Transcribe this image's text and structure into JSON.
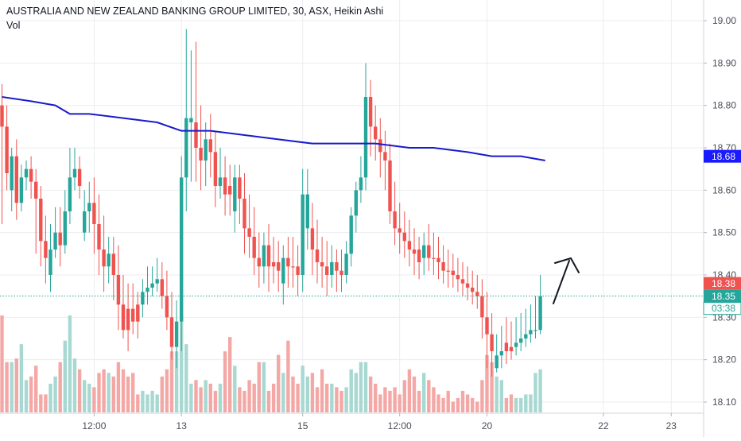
{
  "header": {
    "title": "AUSTRALIA AND NEW ZEALAND BANKING GROUP LIMITED, 30, ASX, Heikin Ashi",
    "vol_label": "Vol"
  },
  "chart_data": {
    "type": "candlestick",
    "title": "AUSTRALIA AND NEW ZEALAND BANKING GROUP LIMITED, 30, ASX, Heikin Ashi",
    "ylim": [
      18.07,
      19.04
    ],
    "y_ticks": [
      "19.00",
      "18.90",
      "18.80",
      "18.70",
      "18.60",
      "18.50",
      "18.40",
      "18.30",
      "18.20",
      "18.10"
    ],
    "x_ticks": [
      {
        "label": "12:00",
        "index": 19
      },
      {
        "label": "13",
        "index": 37
      },
      {
        "label": "15",
        "index": 62
      },
      {
        "label": "12:00",
        "index": 82
      },
      {
        "label": "20",
        "index": 100
      },
      {
        "label": "22",
        "index": 124
      },
      {
        "label": "23",
        "index": 138
      }
    ],
    "candle_dir": [
      -1,
      -1,
      1,
      -1,
      1,
      1,
      -1,
      -1,
      -1,
      -1,
      1,
      1,
      -1,
      1,
      1,
      1,
      -1,
      1,
      1,
      -1,
      -1,
      -1,
      1,
      -1,
      -1,
      -1,
      -1,
      -1,
      -1,
      1,
      1,
      1,
      1,
      -1,
      -1,
      -1,
      1,
      1,
      1,
      1,
      -1,
      -1,
      1,
      -1,
      -1,
      1,
      -1,
      -1,
      1,
      -1,
      -1,
      -1,
      -1,
      -1,
      1,
      -1,
      -1,
      -1,
      1,
      -1,
      -1,
      -1,
      1,
      1,
      -1,
      -1,
      -1,
      -1,
      1,
      -1,
      -1,
      1,
      1,
      1,
      1,
      1,
      -1,
      -1,
      -1,
      -1,
      -1,
      -1,
      -1,
      -1,
      -1,
      -1,
      -1,
      1,
      -1,
      -1,
      -1,
      -1,
      -1,
      -1,
      -1,
      -1,
      -1,
      -1,
      -1,
      -1,
      -1,
      -1,
      1,
      1,
      -1,
      -1,
      1,
      1,
      1,
      1,
      1,
      1,
      1,
      1
    ],
    "closes": [
      18.75,
      18.64,
      18.68,
      18.57,
      18.63,
      18.65,
      18.62,
      18.58,
      18.48,
      18.44,
      18.46,
      18.5,
      18.47,
      18.55,
      18.63,
      18.65,
      18.61,
      18.55,
      18.57,
      18.52,
      18.46,
      18.42,
      18.45,
      18.4,
      18.33,
      18.27,
      18.32,
      18.29,
      18.33,
      18.36,
      18.37,
      18.38,
      18.39,
      18.35,
      18.3,
      18.23,
      18.29,
      18.63,
      18.77,
      18.76,
      18.7,
      18.67,
      18.72,
      18.69,
      18.61,
      18.63,
      18.59,
      18.61,
      18.63,
      18.58,
      18.51,
      18.49,
      18.44,
      18.42,
      18.47,
      18.42,
      18.43,
      18.41,
      18.44,
      18.42,
      18.42,
      18.4,
      18.59,
      18.51,
      18.46,
      18.43,
      18.42,
      18.4,
      18.43,
      18.41,
      18.4,
      18.45,
      18.54,
      18.6,
      18.63,
      18.82,
      18.75,
      18.72,
      18.69,
      18.67,
      18.55,
      18.51,
      18.5,
      18.48,
      18.46,
      18.45,
      18.46,
      18.47,
      18.44,
      18.44,
      18.43,
      18.41,
      18.41,
      18.4,
      18.39,
      18.38,
      18.37,
      18.36,
      18.35,
      18.3,
      18.26,
      18.22,
      18.21,
      18.22,
      18.22,
      18.23,
      18.24,
      18.25,
      18.26,
      18.27,
      18.27,
      18.35
    ],
    "opens": [
      18.8,
      18.75,
      18.6,
      18.68,
      18.57,
      18.63,
      18.65,
      18.62,
      18.58,
      18.48,
      18.4,
      18.46,
      18.5,
      18.47,
      18.55,
      18.63,
      18.65,
      18.5,
      18.55,
      18.57,
      18.52,
      18.46,
      18.42,
      18.45,
      18.4,
      18.33,
      18.27,
      18.32,
      18.29,
      18.33,
      18.36,
      18.37,
      18.38,
      18.39,
      18.35,
      18.3,
      18.23,
      18.29,
      18.63,
      18.77,
      18.76,
      18.7,
      18.67,
      18.72,
      18.69,
      18.61,
      18.63,
      18.59,
      18.55,
      18.63,
      18.58,
      18.51,
      18.49,
      18.44,
      18.42,
      18.47,
      18.42,
      18.43,
      18.38,
      18.44,
      18.42,
      18.42,
      18.4,
      18.59,
      18.51,
      18.46,
      18.43,
      18.42,
      18.4,
      18.43,
      18.41,
      18.4,
      18.45,
      18.54,
      18.6,
      18.63,
      18.82,
      18.75,
      18.72,
      18.69,
      18.67,
      18.55,
      18.51,
      18.5,
      18.48,
      18.46,
      18.43,
      18.44,
      18.47,
      18.44,
      18.44,
      18.43,
      18.41,
      18.41,
      18.4,
      18.39,
      18.38,
      18.37,
      18.36,
      18.35,
      18.3,
      18.26,
      18.18,
      18.21,
      18.24,
      18.22,
      18.23,
      18.24,
      18.25,
      18.26,
      18.27,
      18.27
    ],
    "highs": [
      18.85,
      18.8,
      18.7,
      18.72,
      18.66,
      18.67,
      18.68,
      18.65,
      18.61,
      18.54,
      18.52,
      18.56,
      18.56,
      18.6,
      18.7,
      18.7,
      18.68,
      18.6,
      18.62,
      18.63,
      18.59,
      18.54,
      18.49,
      18.49,
      18.47,
      18.4,
      18.38,
      18.38,
      18.36,
      18.39,
      18.42,
      18.42,
      18.44,
      18.43,
      18.41,
      18.36,
      18.34,
      18.68,
      18.98,
      18.93,
      18.95,
      18.8,
      18.76,
      18.78,
      18.74,
      18.7,
      18.68,
      18.66,
      18.66,
      18.66,
      18.64,
      18.59,
      18.56,
      18.5,
      18.5,
      18.52,
      18.49,
      18.48,
      18.47,
      18.49,
      18.49,
      18.47,
      18.65,
      18.65,
      18.57,
      18.53,
      18.49,
      18.48,
      18.47,
      18.46,
      18.46,
      18.48,
      18.56,
      18.62,
      18.68,
      18.9,
      18.86,
      18.8,
      18.77,
      18.74,
      18.71,
      18.62,
      18.57,
      18.55,
      18.53,
      18.51,
      18.49,
      18.5,
      18.52,
      18.5,
      18.49,
      18.47,
      18.46,
      18.45,
      18.44,
      18.43,
      18.42,
      18.41,
      18.4,
      18.39,
      18.36,
      18.31,
      18.26,
      18.28,
      18.3,
      18.29,
      18.3,
      18.31,
      18.32,
      18.33,
      18.35,
      18.4
    ],
    "lows": [
      18.52,
      18.6,
      18.55,
      18.53,
      18.55,
      18.6,
      18.58,
      18.45,
      18.42,
      18.38,
      18.36,
      18.44,
      18.42,
      18.45,
      18.52,
      18.6,
      18.58,
      18.48,
      18.5,
      18.45,
      18.4,
      18.36,
      18.38,
      18.34,
      18.27,
      18.25,
      18.22,
      18.26,
      18.25,
      18.3,
      18.33,
      18.35,
      18.36,
      18.32,
      18.27,
      18.2,
      18.18,
      18.22,
      18.55,
      18.62,
      18.62,
      18.6,
      18.61,
      18.63,
      18.56,
      18.58,
      18.54,
      18.54,
      18.5,
      18.52,
      18.45,
      18.44,
      18.4,
      18.37,
      18.38,
      18.36,
      18.38,
      18.36,
      18.33,
      18.37,
      18.37,
      18.35,
      18.36,
      18.46,
      18.4,
      18.38,
      18.37,
      18.35,
      18.37,
      18.36,
      18.36,
      18.38,
      18.42,
      18.5,
      18.57,
      18.6,
      18.68,
      18.67,
      18.63,
      18.6,
      18.52,
      18.47,
      18.45,
      18.44,
      18.42,
      18.4,
      18.39,
      18.4,
      18.41,
      18.4,
      18.39,
      18.38,
      18.37,
      18.37,
      18.36,
      18.35,
      18.34,
      18.33,
      18.32,
      18.25,
      18.18,
      18.16,
      18.17,
      18.18,
      18.19,
      18.2,
      18.21,
      18.22,
      18.23,
      18.24,
      18.25,
      18.26
    ],
    "volume": [
      27,
      14,
      14,
      15,
      19,
      9,
      10,
      13,
      5,
      5,
      8,
      10,
      14,
      20,
      27,
      15,
      12,
      9,
      8,
      7,
      11,
      12,
      11,
      10,
      14,
      12,
      10,
      11,
      5,
      6,
      5,
      6,
      5,
      10,
      12,
      17,
      17,
      27,
      19,
      8,
      9,
      7,
      9,
      8,
      6,
      8,
      17,
      21,
      13,
      7,
      6,
      9,
      8,
      14,
      14,
      6,
      8,
      16,
      11,
      20,
      10,
      8,
      13,
      10,
      11,
      7,
      12,
      8,
      8,
      7,
      6,
      7,
      12,
      11,
      14,
      14,
      10,
      8,
      5,
      7,
      6,
      7,
      5,
      9,
      12,
      10,
      6,
      11,
      9,
      7,
      5,
      4,
      6,
      3,
      4,
      6,
      5,
      4,
      3,
      9,
      16,
      14,
      10,
      9,
      4,
      5,
      4,
      4,
      5,
      5,
      11,
      12
    ],
    "ma_line": [
      [
        0,
        18.82
      ],
      [
        6,
        18.81
      ],
      [
        11,
        18.8
      ],
      [
        14,
        18.78
      ],
      [
        18,
        18.78
      ],
      [
        25,
        18.77
      ],
      [
        32,
        18.76
      ],
      [
        37,
        18.74
      ],
      [
        43,
        18.74
      ],
      [
        50,
        18.73
      ],
      [
        57,
        18.72
      ],
      [
        64,
        18.71
      ],
      [
        71,
        18.71
      ],
      [
        77,
        18.71
      ],
      [
        84,
        18.7
      ],
      [
        89,
        18.7
      ],
      [
        96,
        18.69
      ],
      [
        101,
        18.68
      ],
      [
        107,
        18.68
      ],
      [
        112,
        18.67
      ]
    ],
    "last_price": "18.35",
    "price_tags": [
      {
        "label": "18.68",
        "value": 18.68,
        "color": "#1a1aff"
      },
      {
        "label": "18.38",
        "value": 18.38,
        "color": "#ef5350"
      },
      {
        "label": "18.35",
        "value": 18.35,
        "color": "#26a69a"
      }
    ],
    "countdown": "03:38",
    "colors": {
      "up": "#26a69a",
      "down": "#ef5350",
      "up_vol": "#a8d8d2",
      "down_vol": "#f4a8a6",
      "ma": "#1a1acc",
      "grid": "#ecedf0",
      "axis_text": "#4a4d57",
      "last_line": "#26a69a"
    },
    "grid": true,
    "annotation": "arrow pointing up-right"
  }
}
